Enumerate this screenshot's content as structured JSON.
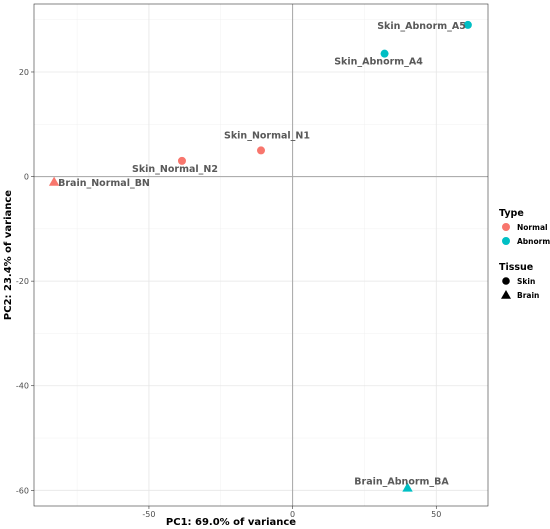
{
  "chart_data": {
    "type": "scatter",
    "xlabel": "PC1: 69.0% of variance",
    "ylabel": "PC2: 23.4% of variance",
    "xlim": [
      -90,
      68
    ],
    "ylim": [
      -63,
      33
    ],
    "x_ticks": [
      -50,
      0,
      50
    ],
    "y_ticks": [
      20,
      0,
      -20,
      -40,
      -60
    ],
    "x_tick_labels": [
      "-50",
      "0",
      "50"
    ],
    "y_tick_labels": [
      "20",
      "0",
      "-20",
      "-40",
      "-60"
    ],
    "grid": true,
    "zero_lines": true,
    "legend_position": "right",
    "points": [
      {
        "label": "Skin_Abnorm_A5",
        "x": 61,
        "y": 29,
        "type": "Abnorm",
        "tissue": "Skin"
      },
      {
        "label": "Skin_Abnorm_A4",
        "x": 32,
        "y": 23.5,
        "type": "Abnorm",
        "tissue": "Skin"
      },
      {
        "label": "Skin_Normal_N1",
        "x": -11,
        "y": 5,
        "type": "Normal",
        "tissue": "Skin"
      },
      {
        "label": "Skin_Normal_N2",
        "x": -38.5,
        "y": 3,
        "type": "Normal",
        "tissue": "Skin"
      },
      {
        "label": "Brain_Normal_BN",
        "x": -83,
        "y": -1,
        "type": "Normal",
        "tissue": "Brain"
      },
      {
        "label": "Brain_Abnorm_BA",
        "x": 40,
        "y": -59.5,
        "type": "Abnorm",
        "tissue": "Brain"
      }
    ],
    "legends": [
      {
        "title": "Type",
        "items": [
          {
            "label": "Normal",
            "color": "#F8766D"
          },
          {
            "label": "Abnorm",
            "color": "#00BFC4"
          }
        ]
      },
      {
        "title": "Tissue",
        "items": [
          {
            "label": "Skin",
            "shape": "circle"
          },
          {
            "label": "Brain",
            "shape": "triangle"
          }
        ]
      }
    ],
    "colors": {
      "Normal": "#F8766D",
      "Abnorm": "#00BFC4"
    }
  }
}
